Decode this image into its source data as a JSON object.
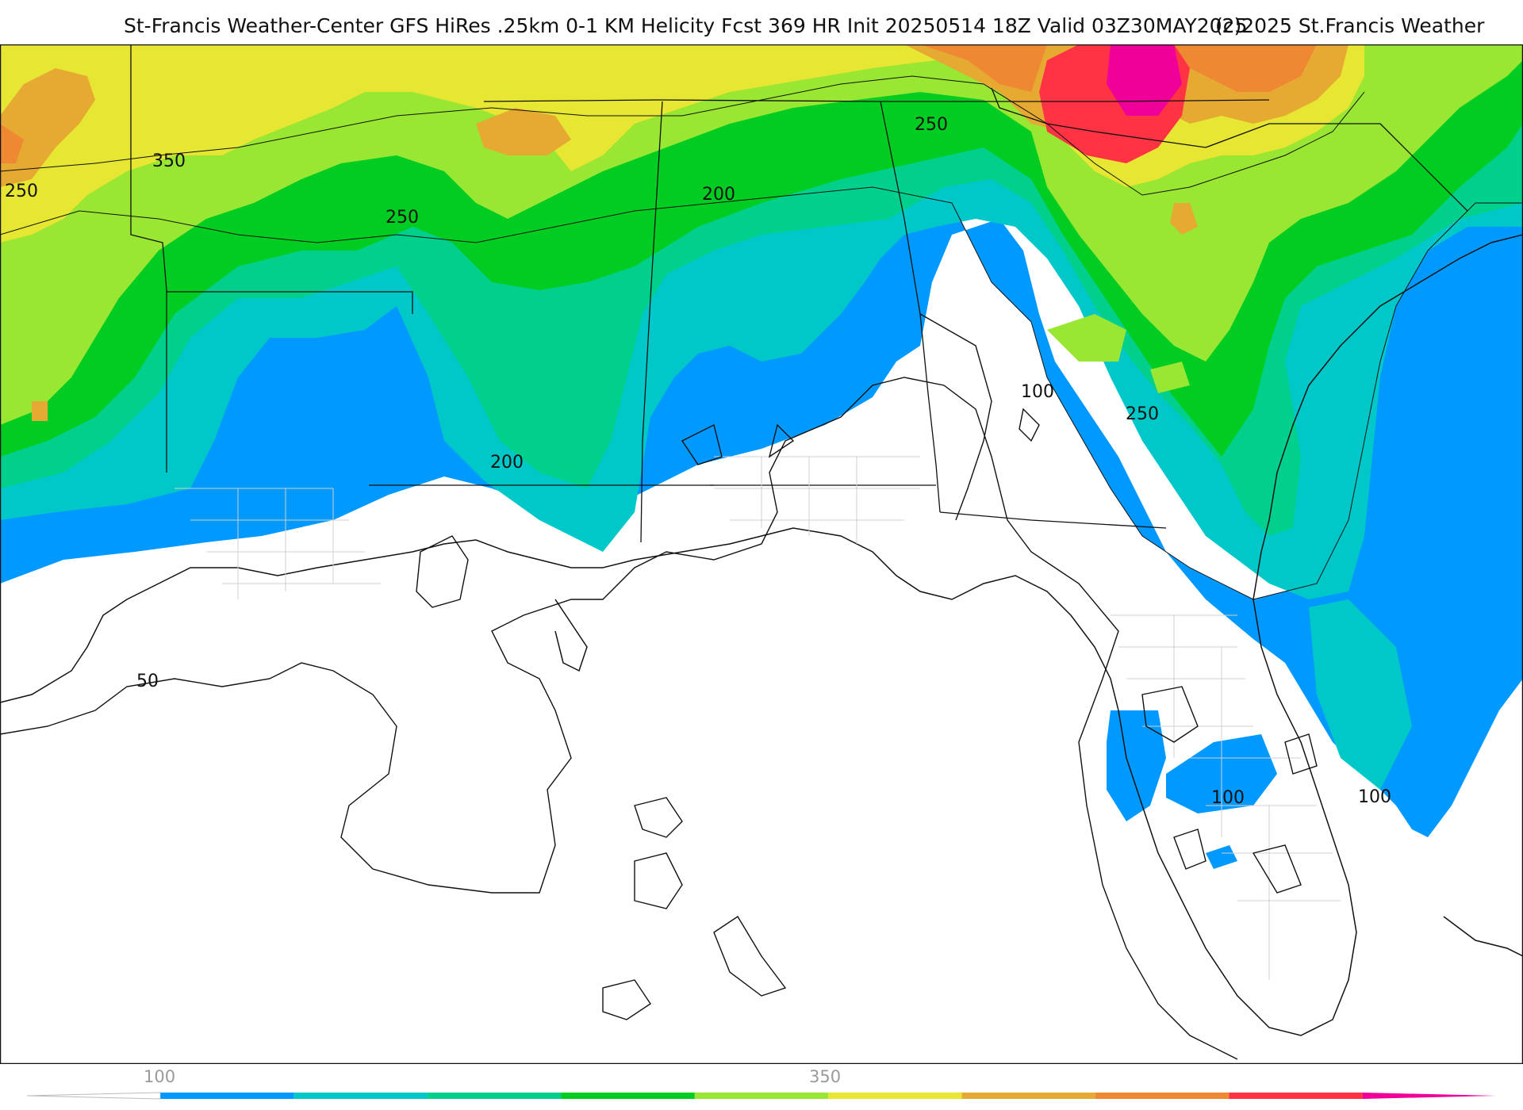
{
  "header": {
    "title": "St-Francis Weather-Center GFS HiRes .25km 0-1 KM Helicity Fcst 369 HR Init 20250514 18Z  Valid 03Z30MAY2025",
    "copyright": "(c)2025 St.Francis Weather"
  },
  "map": {
    "contour_labels": [
      {
        "id": "350-west",
        "text": "350"
      },
      {
        "id": "250-far-west",
        "text": "250"
      },
      {
        "id": "250-arkansas",
        "text": "250"
      },
      {
        "id": "200-georgia",
        "text": "200"
      },
      {
        "id": "250-north",
        "text": "250"
      },
      {
        "id": "200-louisiana",
        "text": "200"
      },
      {
        "id": "100-georgia",
        "text": "100"
      },
      {
        "id": "250-carolina",
        "text": "250"
      },
      {
        "id": "50-gulf",
        "text": "50"
      },
      {
        "id": "100-florida",
        "text": "100"
      },
      {
        "id": "100-atlantic",
        "text": "100"
      }
    ]
  },
  "colorbar": {
    "ticks": [
      {
        "id": "tick-100",
        "text": "100"
      },
      {
        "id": "tick-350",
        "text": "350"
      }
    ],
    "colors": [
      "#ffffff",
      "#0099ff",
      "#00c8c8",
      "#00d08c",
      "#00cc22",
      "#99e633",
      "#e6e633",
      "#e6aa33",
      "#ee8833",
      "#ff3344",
      "#ee0099"
    ]
  }
}
